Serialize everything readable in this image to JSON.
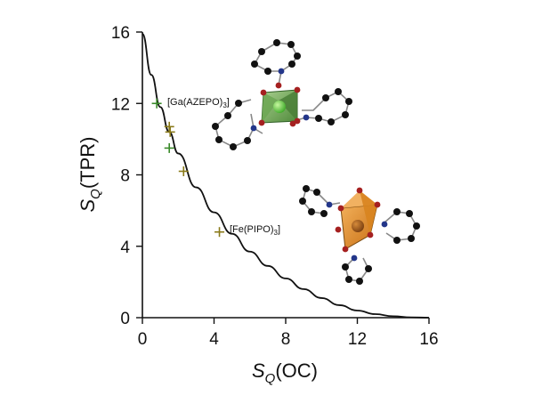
{
  "chart_data": {
    "type": "scatter",
    "xlabel": {
      "main": "S",
      "sub": "Q",
      "rest": "(OC)"
    },
    "ylabel": {
      "main": "S",
      "sub": "Q",
      "rest": "(TPR)"
    },
    "xlim": [
      0,
      16
    ],
    "ylim": [
      0,
      16
    ],
    "xticks": [
      "0",
      "4",
      "8",
      "12",
      "16"
    ],
    "yticks": [
      "0",
      "4",
      "8",
      "12",
      "16"
    ],
    "grid": false,
    "colors": {
      "green": "#3a8a2a",
      "olive": "#8a7a1a",
      "curve": "#111111"
    },
    "curve": {
      "x": [
        0,
        0.5,
        1,
        1.5,
        2,
        3,
        4,
        5,
        6,
        7,
        8,
        9,
        10,
        11,
        12,
        13,
        14,
        15,
        16
      ],
      "y": [
        15.9,
        13.6,
        11.8,
        10.4,
        9.2,
        7.3,
        5.9,
        4.7,
        3.7,
        2.9,
        2.2,
        1.6,
        1.1,
        0.7,
        0.4,
        0.2,
        0.08,
        0.02,
        0
      ]
    },
    "series": [
      {
        "color": "green",
        "points": [
          {
            "x": 0.8,
            "y": 12.0
          },
          {
            "x": 1.5,
            "y": 9.5
          }
        ]
      },
      {
        "color": "olive",
        "points": [
          {
            "x": 1.5,
            "y": 10.7
          },
          {
            "x": 1.55,
            "y": 10.4
          },
          {
            "x": 2.3,
            "y": 8.2
          },
          {
            "x": 4.3,
            "y": 4.8
          }
        ]
      }
    ],
    "annotations": [
      {
        "main": "[Ga(AZEPO)",
        "sub": "3",
        "close": "]"
      },
      {
        "main": "[Fe(PIPO)",
        "sub": "3",
        "close": "]"
      }
    ]
  }
}
